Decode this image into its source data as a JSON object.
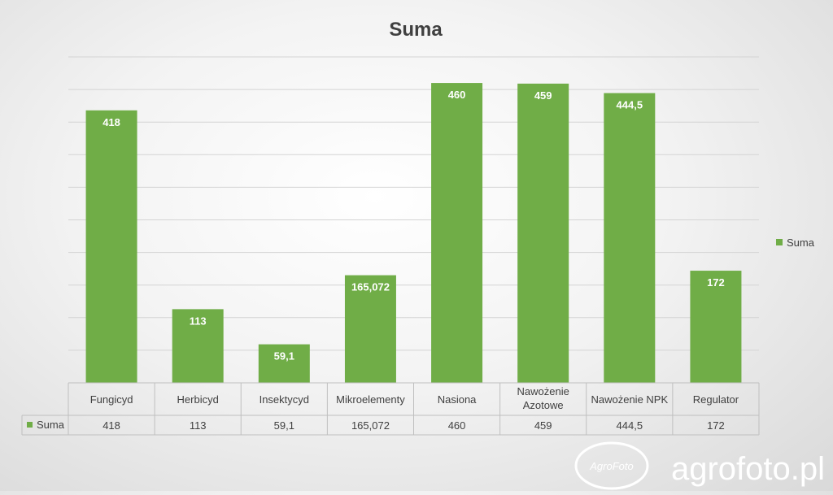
{
  "chart_data": {
    "type": "bar",
    "title": "Suma",
    "categories": [
      "Fungicyd",
      "Herbicyd",
      "Insektycyd",
      "Mikroelementy",
      "Nasiona",
      "Nawożenie Azotowe",
      "Nawożenie NPK",
      "Regulator"
    ],
    "series": [
      {
        "name": "Suma",
        "values": [
          418,
          113,
          59.1,
          165.072,
          460,
          459,
          444.5,
          172
        ],
        "labels": [
          "418",
          "113",
          "59,1",
          "165,072",
          "460",
          "459",
          "444,5",
          "172"
        ],
        "color": "#70ad47"
      }
    ],
    "ylim": [
      0,
      500
    ],
    "grid": true,
    "legend": "right",
    "data_table": true
  },
  "watermark": {
    "text": "agrofoto.pl",
    "logo_text": "AgroFoto"
  }
}
